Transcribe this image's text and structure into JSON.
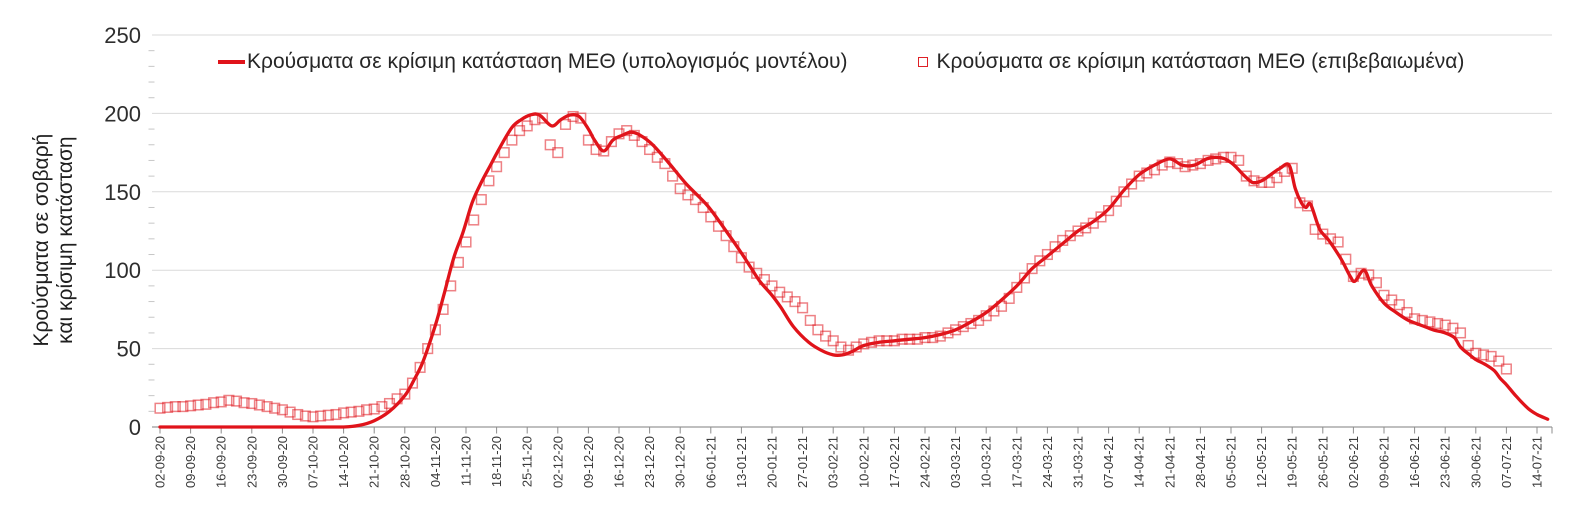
{
  "chart": {
    "y_axis": {
      "title_lines": [
        "Κρούσματα σε σοβαρή",
        "και κρίσιμη κατάσταση"
      ],
      "tick_labels": [
        "0",
        "50",
        "100",
        "150",
        "200",
        "250"
      ]
    },
    "legend": [
      {
        "label": "Κρούσματα σε κρίσιμη κατάσταση ΜΕΘ (υπολογισμός μοντέλου)",
        "marker": "line-marker"
      },
      {
        "label": "Κρούσματα σε κρίσιμη κατάσταση ΜΕΘ (επιβεβαιωμένα)",
        "marker": "open-square-marker"
      }
    ],
    "colors": {
      "series_red": "#e0131a",
      "square_stroke": "rgba(224,26,32,0.55)",
      "gridline": "#dadada",
      "axis_line": "#999999",
      "tick_mark": "#8c8c8c",
      "minor_tick": "#c6c6c6",
      "text": "#262626"
    }
  },
  "chart_data": {
    "type": "line",
    "title": "",
    "xlabel": "",
    "ylabel": "Κρούσματα σε σοβαρή και κρίσιμη κατάσταση",
    "ylim": [
      0,
      250
    ],
    "y_ticks": [
      0,
      50,
      100,
      150,
      200,
      250
    ],
    "y_minor_tick_step": 10,
    "grid": "horizontal",
    "legend_position": "top",
    "x_unit": "week-index (0 = 02-09-20, 1 tick = 7 days)",
    "x_tick_labels": [
      "02-09-20",
      "09-09-20",
      "16-09-20",
      "23-09-20",
      "30-09-20",
      "07-10-20",
      "14-10-20",
      "21-10-20",
      "28-10-20",
      "04-11-20",
      "11-11-20",
      "18-11-20",
      "25-11-20",
      "02-12-20",
      "09-12-20",
      "16-12-20",
      "23-12-20",
      "30-12-20",
      "06-01-21",
      "13-01-21",
      "20-01-21",
      "27-01-21",
      "03-02-21",
      "10-02-21",
      "17-02-21",
      "24-02-21",
      "03-03-21",
      "10-03-21",
      "17-03-21",
      "24-03-21",
      "31-03-21",
      "07-04-21",
      "14-04-21",
      "21-04-21",
      "28-04-21",
      "05-05-21",
      "12-05-21",
      "19-05-21",
      "26-05-21",
      "02-06-21",
      "09-06-21",
      "16-06-21",
      "23-06-21",
      "30-06-21",
      "07-07-21",
      "14-07-21"
    ],
    "series": [
      {
        "name": "Κρούσματα σε κρίσιμη κατάσταση ΜΕΘ (υπολογισμός μοντέλου)",
        "type": "line",
        "color": "#e0131a",
        "points": [
          [
            0,
            0
          ],
          [
            1,
            0
          ],
          [
            2,
            0
          ],
          [
            3,
            0
          ],
          [
            4,
            0
          ],
          [
            5,
            0
          ],
          [
            6,
            0
          ],
          [
            6.5,
            1
          ],
          [
            7,
            4
          ],
          [
            7.5,
            10
          ],
          [
            8,
            20
          ],
          [
            8.3,
            30
          ],
          [
            8.6,
            42
          ],
          [
            9,
            65
          ],
          [
            9.3,
            86
          ],
          [
            9.6,
            108
          ],
          [
            9.9,
            124
          ],
          [
            10.2,
            143
          ],
          [
            10.5,
            156
          ],
          [
            10.8,
            167
          ],
          [
            11.1,
            178
          ],
          [
            11.5,
            191
          ],
          [
            11.8,
            196
          ],
          [
            12.1,
            199
          ],
          [
            12.4,
            199
          ],
          [
            12.8,
            192
          ],
          [
            13.1,
            196
          ],
          [
            13.4,
            199
          ],
          [
            13.7,
            198
          ],
          [
            14,
            190
          ],
          [
            14.2,
            183
          ],
          [
            14.5,
            176
          ],
          [
            14.8,
            183
          ],
          [
            15.1,
            186
          ],
          [
            15.4,
            188
          ],
          [
            15.7,
            186
          ],
          [
            16.1,
            180
          ],
          [
            16.6,
            169
          ],
          [
            17.2,
            155
          ],
          [
            17.9,
            141
          ],
          [
            18.5,
            125
          ],
          [
            19,
            111
          ],
          [
            19.3,
            102
          ],
          [
            19.6,
            93
          ],
          [
            20,
            84
          ],
          [
            20.3,
            76
          ],
          [
            20.7,
            64
          ],
          [
            21.2,
            54
          ],
          [
            21.6,
            49
          ],
          [
            22,
            46
          ],
          [
            22.3,
            46
          ],
          [
            22.6,
            48
          ],
          [
            23,
            52
          ],
          [
            23.5,
            54
          ],
          [
            24,
            55
          ],
          [
            24.5,
            56
          ],
          [
            25,
            57
          ],
          [
            25.5,
            59
          ],
          [
            26,
            62
          ],
          [
            26.5,
            67
          ],
          [
            27,
            73
          ],
          [
            27.5,
            81
          ],
          [
            28,
            90
          ],
          [
            28.5,
            101
          ],
          [
            29,
            109
          ],
          [
            29.5,
            117
          ],
          [
            30,
            125
          ],
          [
            30.5,
            131
          ],
          [
            31,
            139
          ],
          [
            31.5,
            151
          ],
          [
            32,
            161
          ],
          [
            32.5,
            167
          ],
          [
            33,
            171
          ],
          [
            33.4,
            167
          ],
          [
            33.8,
            167
          ],
          [
            34.2,
            171
          ],
          [
            34.5,
            172
          ],
          [
            34.8,
            171
          ],
          [
            35.1,
            167
          ],
          [
            35.4,
            161
          ],
          [
            35.7,
            156
          ],
          [
            36,
            157
          ],
          [
            36.3,
            161
          ],
          [
            36.6,
            165
          ],
          [
            36.9,
            167
          ],
          [
            37.1,
            152
          ],
          [
            37.3,
            143
          ],
          [
            37.45,
            140
          ],
          [
            37.6,
            142
          ],
          [
            37.9,
            126
          ],
          [
            38.2,
            119
          ],
          [
            38.6,
            107
          ],
          [
            38.9,
            96
          ],
          [
            39.05,
            93
          ],
          [
            39.35,
            100
          ],
          [
            39.6,
            90
          ],
          [
            40,
            79
          ],
          [
            40.4,
            73
          ],
          [
            40.8,
            68
          ],
          [
            41.2,
            65
          ],
          [
            41.6,
            62
          ],
          [
            42,
            60
          ],
          [
            42.3,
            57
          ],
          [
            42.5,
            51
          ],
          [
            42.8,
            46
          ],
          [
            43,
            43
          ],
          [
            43.3,
            40
          ],
          [
            43.6,
            36
          ],
          [
            43.8,
            31
          ],
          [
            44,
            27
          ],
          [
            44.3,
            20
          ],
          [
            44.7,
            12
          ],
          [
            45,
            8
          ],
          [
            45.35,
            5
          ]
        ]
      },
      {
        "name": "Κρούσματα σε κρίσιμη κατάσταση ΜΕΘ (επιβεβαιωμένα)",
        "type": "scatter",
        "marker": "open-square",
        "color": "#e0131a",
        "points": [
          [
            0,
            12
          ],
          [
            0.25,
            12.5
          ],
          [
            0.5,
            13
          ],
          [
            0.75,
            13
          ],
          [
            1,
            13.5
          ],
          [
            1.25,
            14
          ],
          [
            1.5,
            14.5
          ],
          [
            1.75,
            15.5
          ],
          [
            2,
            16
          ],
          [
            2.25,
            17
          ],
          [
            2.5,
            16.5
          ],
          [
            2.75,
            15.5
          ],
          [
            3,
            15
          ],
          [
            3.25,
            14
          ],
          [
            3.5,
            13
          ],
          [
            3.75,
            12
          ],
          [
            4,
            11
          ],
          [
            4.25,
            9.5
          ],
          [
            4.5,
            8
          ],
          [
            4.75,
            7
          ],
          [
            5,
            6.5
          ],
          [
            5.25,
            7
          ],
          [
            5.5,
            7.5
          ],
          [
            5.75,
            8
          ],
          [
            6,
            9
          ],
          [
            6.25,
            9.5
          ],
          [
            6.5,
            10
          ],
          [
            6.75,
            11
          ],
          [
            7,
            11.5
          ],
          [
            7.25,
            13
          ],
          [
            7.5,
            15
          ],
          [
            7.75,
            18
          ],
          [
            8,
            21
          ],
          [
            8.25,
            28
          ],
          [
            8.5,
            38
          ],
          [
            8.75,
            50
          ],
          [
            9,
            62
          ],
          [
            9.25,
            75
          ],
          [
            9.5,
            90
          ],
          [
            9.75,
            105
          ],
          [
            10,
            118
          ],
          [
            10.25,
            132
          ],
          [
            10.5,
            145
          ],
          [
            10.75,
            157
          ],
          [
            11,
            166
          ],
          [
            11.25,
            175
          ],
          [
            11.5,
            183
          ],
          [
            11.75,
            189
          ],
          [
            12,
            192
          ],
          [
            12.25,
            196
          ],
          [
            12.5,
            197
          ],
          [
            12.75,
            180
          ],
          [
            13,
            175
          ],
          [
            13.25,
            193
          ],
          [
            13.5,
            198
          ],
          [
            13.75,
            197
          ],
          [
            14,
            183
          ],
          [
            14.25,
            177
          ],
          [
            14.5,
            176
          ],
          [
            14.75,
            182
          ],
          [
            15,
            187
          ],
          [
            15.25,
            189
          ],
          [
            15.5,
            186
          ],
          [
            15.75,
            182
          ],
          [
            16,
            177
          ],
          [
            16.25,
            172
          ],
          [
            16.5,
            168
          ],
          [
            16.75,
            160
          ],
          [
            17,
            152
          ],
          [
            17.25,
            148
          ],
          [
            17.5,
            145
          ],
          [
            17.75,
            140
          ],
          [
            18,
            134
          ],
          [
            18.25,
            128
          ],
          [
            18.5,
            122
          ],
          [
            18.75,
            115
          ],
          [
            19,
            108
          ],
          [
            19.25,
            102
          ],
          [
            19.5,
            98
          ],
          [
            19.75,
            94
          ],
          [
            20,
            90
          ],
          [
            20.25,
            86
          ],
          [
            20.5,
            83
          ],
          [
            20.75,
            80
          ],
          [
            21,
            76
          ],
          [
            21.25,
            68
          ],
          [
            21.5,
            62
          ],
          [
            21.75,
            58
          ],
          [
            22,
            55
          ],
          [
            22.25,
            51
          ],
          [
            22.5,
            49
          ],
          [
            22.75,
            51
          ],
          [
            23,
            53
          ],
          [
            23.25,
            54
          ],
          [
            23.5,
            55
          ],
          [
            23.75,
            55
          ],
          [
            24,
            55
          ],
          [
            24.25,
            56
          ],
          [
            24.5,
            56
          ],
          [
            24.75,
            56
          ],
          [
            25,
            57
          ],
          [
            25.25,
            57
          ],
          [
            25.5,
            58
          ],
          [
            25.75,
            60
          ],
          [
            26,
            62
          ],
          [
            26.25,
            64
          ],
          [
            26.5,
            66
          ],
          [
            26.75,
            68
          ],
          [
            27,
            71
          ],
          [
            27.25,
            74
          ],
          [
            27.5,
            77
          ],
          [
            27.75,
            82
          ],
          [
            28,
            89
          ],
          [
            28.25,
            95
          ],
          [
            28.5,
            101
          ],
          [
            28.75,
            106
          ],
          [
            29,
            110
          ],
          [
            29.25,
            115
          ],
          [
            29.5,
            119
          ],
          [
            29.75,
            122
          ],
          [
            30,
            125
          ],
          [
            30.25,
            127
          ],
          [
            30.5,
            130
          ],
          [
            30.75,
            134
          ],
          [
            31,
            138
          ],
          [
            31.25,
            144
          ],
          [
            31.5,
            150
          ],
          [
            31.75,
            155
          ],
          [
            32,
            160
          ],
          [
            32.25,
            162
          ],
          [
            32.5,
            164
          ],
          [
            32.75,
            167
          ],
          [
            33,
            169
          ],
          [
            33.25,
            168
          ],
          [
            33.5,
            166
          ],
          [
            33.75,
            167
          ],
          [
            34,
            168
          ],
          [
            34.25,
            170
          ],
          [
            34.5,
            171
          ],
          [
            34.75,
            172
          ],
          [
            35,
            172
          ],
          [
            35.25,
            170
          ],
          [
            35.5,
            160
          ],
          [
            35.75,
            157
          ],
          [
            36,
            156
          ],
          [
            36.25,
            156
          ],
          [
            36.5,
            159
          ],
          [
            36.75,
            163
          ],
          [
            37,
            165
          ],
          [
            37.25,
            143
          ],
          [
            37.5,
            141
          ],
          [
            37.75,
            126
          ],
          [
            38,
            123
          ],
          [
            38.25,
            120
          ],
          [
            38.5,
            118
          ],
          [
            38.75,
            107
          ],
          [
            39,
            96
          ],
          [
            39.25,
            98
          ],
          [
            39.5,
            97
          ],
          [
            39.75,
            92
          ],
          [
            40,
            84
          ],
          [
            40.25,
            81
          ],
          [
            40.5,
            78
          ],
          [
            40.75,
            73
          ],
          [
            41,
            69
          ],
          [
            41.25,
            68
          ],
          [
            41.5,
            67
          ],
          [
            41.75,
            66
          ],
          [
            42,
            65
          ],
          [
            42.25,
            63
          ],
          [
            42.5,
            60
          ],
          [
            42.75,
            52
          ],
          [
            43,
            47
          ],
          [
            43.25,
            46
          ],
          [
            43.5,
            45
          ],
          [
            43.75,
            42
          ],
          [
            44,
            37
          ]
        ]
      }
    ]
  }
}
